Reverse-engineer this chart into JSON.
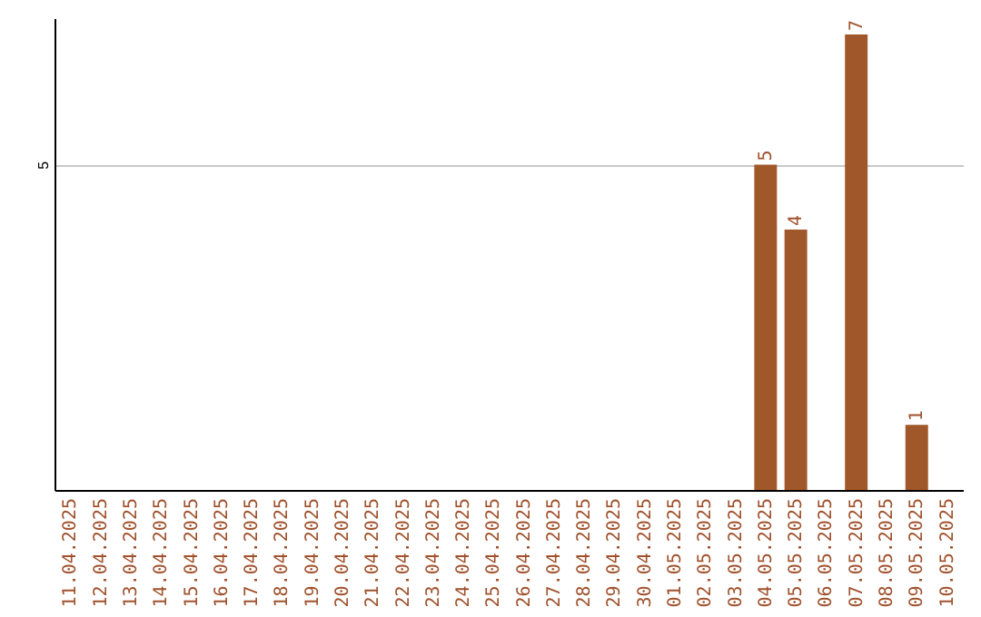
{
  "chart_data": {
    "type": "bar",
    "categories": [
      "11.04.2025",
      "12.04.2025",
      "13.04.2025",
      "14.04.2025",
      "15.04.2025",
      "16.04.2025",
      "17.04.2025",
      "18.04.2025",
      "19.04.2025",
      "20.04.2025",
      "21.04.2025",
      "22.04.2025",
      "23.04.2025",
      "24.04.2025",
      "25.04.2025",
      "26.04.2025",
      "27.04.2025",
      "28.04.2025",
      "29.04.2025",
      "30.04.2025",
      "01.05.2025",
      "02.05.2025",
      "03.05.2025",
      "04.05.2025",
      "05.05.2025",
      "06.05.2025",
      "07.05.2025",
      "08.05.2025",
      "09.05.2025",
      "10.05.2025"
    ],
    "values": [
      null,
      null,
      null,
      null,
      null,
      null,
      null,
      null,
      null,
      null,
      null,
      null,
      null,
      null,
      null,
      null,
      null,
      null,
      null,
      null,
      null,
      null,
      null,
      5,
      4,
      null,
      7,
      null,
      1,
      null
    ],
    "color": "#a0572a",
    "ylim": [
      0,
      7.25
    ],
    "yticks": [
      5
    ],
    "grid": "y",
    "data_labels": true
  }
}
